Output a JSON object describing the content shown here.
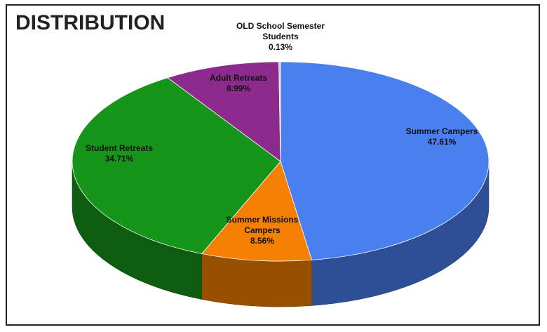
{
  "chart_data": {
    "type": "pie3d",
    "title": "DISTRIBUTION",
    "categories": [
      "Summer Campers",
      "Summer Missions Campers",
      "Student Retreats",
      "Adult Retreats",
      "OLD School Semester Students"
    ],
    "values": [
      47.61,
      8.56,
      34.71,
      8.99,
      0.13
    ],
    "value_labels": [
      "47.61%",
      "8.56%",
      "34.71%",
      "8.99%",
      "0.13%"
    ],
    "colors": [
      "#4a7ff0",
      "#f57f00",
      "#16951a",
      "#8c2a8e",
      "#c8c8d0"
    ]
  }
}
